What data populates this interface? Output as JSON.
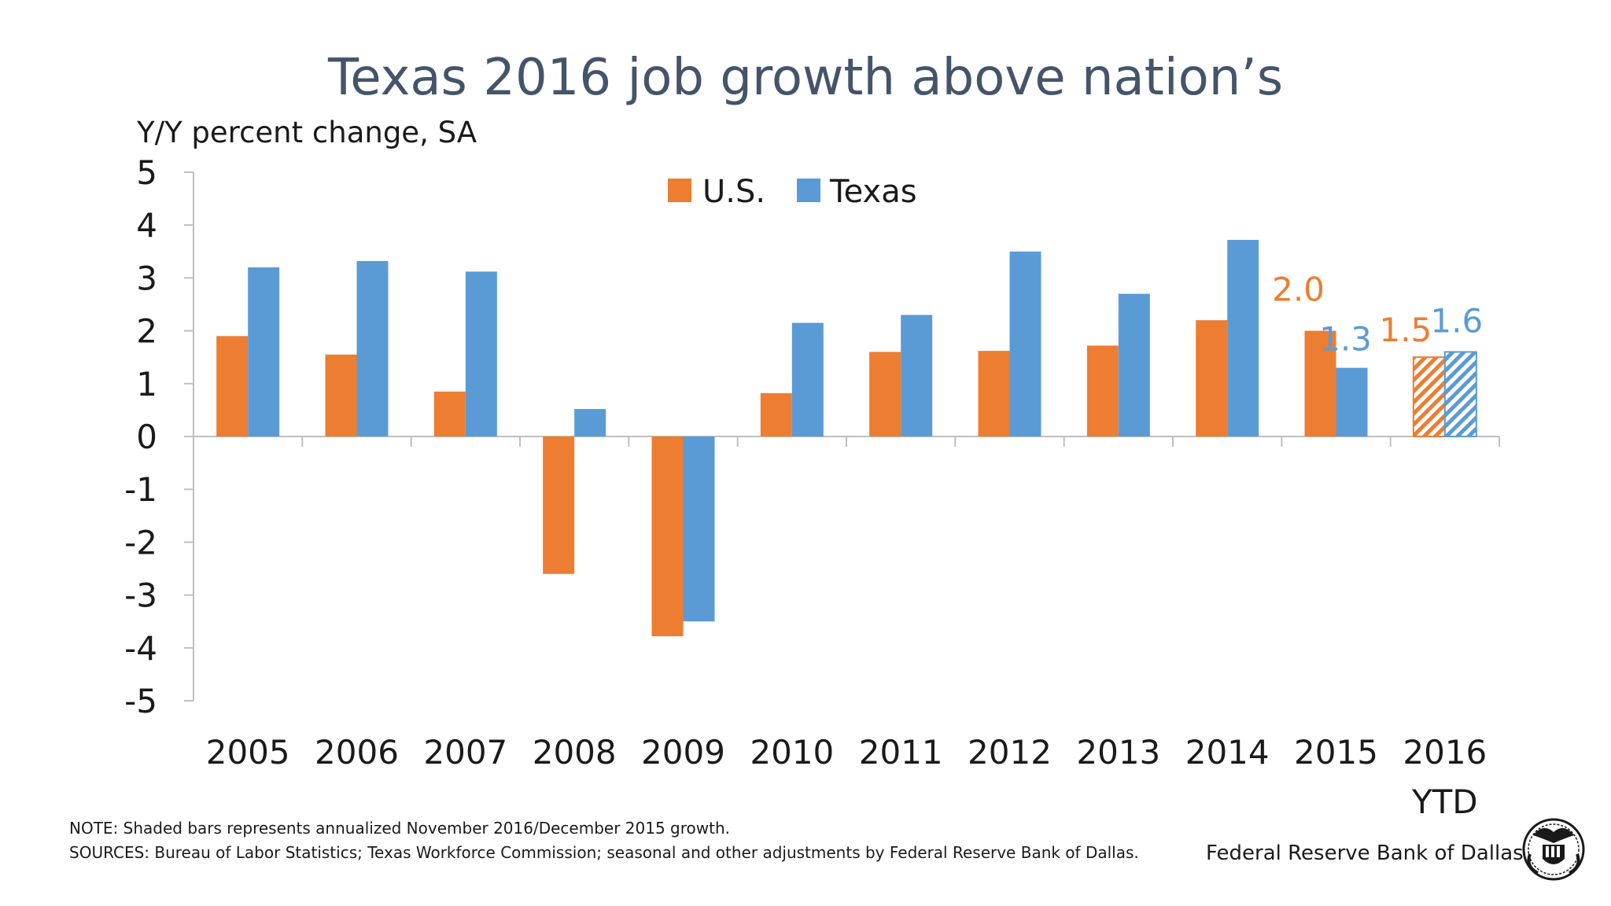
{
  "chart_data": {
    "type": "bar",
    "title": "Texas 2016 job growth above nation’s",
    "ylabel": "Y/Y percent change, SA",
    "xlabel": "",
    "ylim": [
      -5,
      5
    ],
    "yticks": [
      "5",
      "4",
      "3",
      "2",
      "1",
      "0",
      "-1",
      "-2",
      "-3",
      "-4",
      "-5"
    ],
    "categories": [
      "2005",
      "2006",
      "2007",
      "2008",
      "2009",
      "2010",
      "2011",
      "2012",
      "2013",
      "2014",
      "2015",
      "2016"
    ],
    "category_sublabels": [
      "",
      "",
      "",
      "",
      "",
      "",
      "",
      "",
      "",
      "",
      "",
      "YTD"
    ],
    "series": [
      {
        "name": "U.S.",
        "color": "#ed7d31",
        "values": [
          1.9,
          1.55,
          0.85,
          -2.6,
          -3.78,
          0.82,
          1.6,
          1.62,
          1.72,
          2.2,
          2.0,
          1.5
        ],
        "shaded": [
          false,
          false,
          false,
          false,
          false,
          false,
          false,
          false,
          false,
          false,
          false,
          true
        ]
      },
      {
        "name": "Texas",
        "color": "#5b9bd5",
        "values": [
          3.2,
          3.32,
          3.12,
          0.52,
          -3.5,
          2.15,
          2.3,
          3.5,
          2.7,
          3.72,
          1.3,
          1.6
        ],
        "shaded": [
          false,
          false,
          false,
          false,
          false,
          false,
          false,
          false,
          false,
          false,
          false,
          true
        ]
      }
    ],
    "data_labels": [
      {
        "series": 0,
        "index": 10,
        "text": "2.0"
      },
      {
        "series": 1,
        "index": 10,
        "text": "1.3"
      },
      {
        "series": 0,
        "index": 11,
        "text": "1.5"
      },
      {
        "series": 1,
        "index": 11,
        "text": "1.6"
      }
    ],
    "legend": [
      "U.S.",
      "Texas"
    ],
    "grid": false
  },
  "footer": {
    "note": "NOTE: Shaded bars represents annualized November 2016/December 2015 growth.",
    "sources": "SOURCES: Bureau of Labor Statistics; Texas Workforce Commission; seasonal and other adjustments by Federal Reserve Bank of Dallas.",
    "credit": "Federal Reserve Bank of Dallas"
  },
  "logo": {
    "icon": "federal-reserve-seal-icon"
  }
}
